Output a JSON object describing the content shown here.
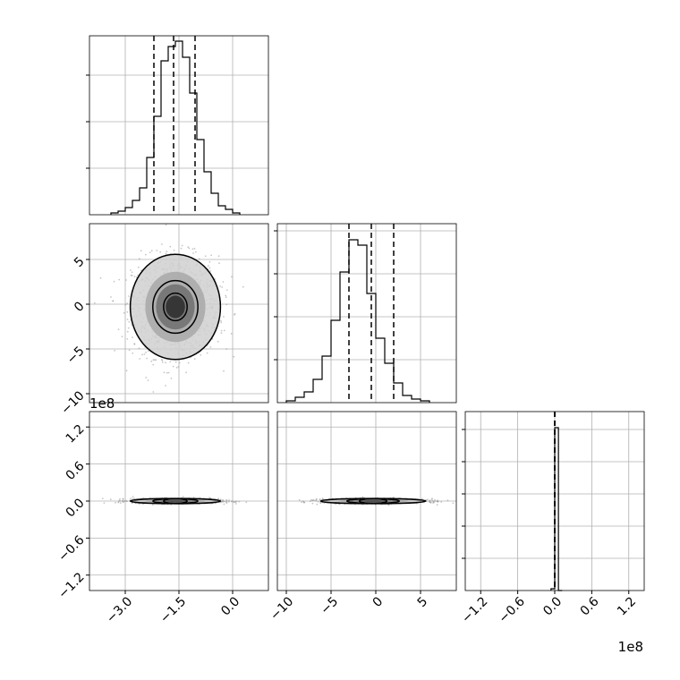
{
  "chart_data": {
    "type": "corner",
    "grid": true,
    "panels": [
      {
        "id": "hist-0",
        "type": "histogram",
        "param": 0,
        "xlim": [
          -4.0,
          1.0
        ],
        "ylim": [
          0,
          1.0
        ],
        "bin_width": 0.2,
        "bin_start": -3.4,
        "counts": [
          0.01,
          0.02,
          0.04,
          0.08,
          0.15,
          0.32,
          0.55,
          0.86,
          0.94,
          0.97,
          0.88,
          0.68,
          0.42,
          0.24,
          0.12,
          0.05,
          0.03,
          0.01
        ],
        "quantiles": [
          -2.2,
          -1.65,
          -1.05
        ],
        "yticks": [
          0.26,
          0.52,
          0.78
        ]
      },
      {
        "id": "hist-1",
        "type": "histogram",
        "param": 1,
        "xlim": [
          -11.0,
          9.0
        ],
        "ylim": [
          0,
          1.0
        ],
        "bin_width": 1.0,
        "bin_start": -10.0,
        "counts": [
          0.01,
          0.03,
          0.06,
          0.13,
          0.26,
          0.46,
          0.73,
          0.91,
          0.88,
          0.61,
          0.36,
          0.22,
          0.11,
          0.04,
          0.02,
          0.01
        ],
        "quantiles": [
          -3.0,
          -0.5,
          2.0
        ],
        "yticks": [
          0.24,
          0.48,
          0.72,
          0.96
        ]
      },
      {
        "id": "hist-2",
        "type": "histogram",
        "param": 2,
        "xlim": [
          -1.45,
          1.45
        ],
        "ylim": [
          0,
          1.0
        ],
        "bin_width": 0.06,
        "bin_start": -0.06,
        "counts": [
          0.01,
          0.91,
          0.0
        ],
        "quantiles": [
          0.0,
          0.0,
          0.0
        ],
        "yticks": [
          0.18,
          0.36,
          0.54,
          0.72,
          0.9
        ]
      },
      {
        "id": "scatter-1-0",
        "type": "density",
        "xparam": 0,
        "yparam": 1,
        "xlim": [
          -4.0,
          1.0
        ],
        "ylim": [
          -11.0,
          9.0
        ],
        "center": [
          -1.6,
          -0.3
        ],
        "spread": [
          0.6,
          2.8
        ],
        "contour_scales": [
          0.55,
          1.05,
          2.1
        ]
      },
      {
        "id": "scatter-2-0",
        "type": "density",
        "xparam": 0,
        "yparam": 2,
        "xlim": [
          -4.0,
          1.0
        ],
        "ylim": [
          -1.45,
          1.45
        ],
        "center": [
          -1.6,
          0.0
        ],
        "spread": [
          0.6,
          0.02
        ],
        "contour_scales": [
          0.55,
          1.05,
          2.1
        ]
      },
      {
        "id": "scatter-2-1",
        "type": "density",
        "xparam": 1,
        "yparam": 2,
        "xlim": [
          -11.0,
          9.0
        ],
        "ylim": [
          -1.45,
          1.45
        ],
        "center": [
          -0.3,
          0.0
        ],
        "spread": [
          2.8,
          0.02
        ],
        "contour_scales": [
          0.55,
          1.05,
          2.1
        ]
      }
    ],
    "axes": {
      "x": [
        {
          "ticks": [
            -3.0,
            -1.5,
            0.0
          ],
          "labels": [
            "−3.0",
            "−1.5",
            "0.0"
          ]
        },
        {
          "ticks": [
            -10,
            -5,
            0,
            5
          ],
          "labels": [
            "−10",
            "−5",
            "0",
            "5"
          ]
        },
        {
          "ticks": [
            -1.2,
            -0.6,
            0.0,
            0.6,
            1.2
          ],
          "labels": [
            "−1.2",
            "−0.6",
            "0.0",
            "0.6",
            "1.2"
          ]
        }
      ],
      "y": [
        null,
        {
          "ticks": [
            5,
            0,
            -5,
            -10
          ],
          "labels": [
            "5",
            "0",
            "−5",
            "−10"
          ]
        },
        {
          "ticks": [
            1.2,
            0.6,
            0.0,
            -0.6,
            -1.2
          ],
          "labels": [
            "1.2",
            "0.6",
            "0.0",
            "−0.6",
            "−1.2"
          ]
        }
      ]
    },
    "offset_labels": {
      "y_row2": "1e8",
      "x_col2": "1e8"
    }
  },
  "colors": {
    "line": "#000000",
    "grid": "#b0b0b0",
    "point": "#999999"
  }
}
